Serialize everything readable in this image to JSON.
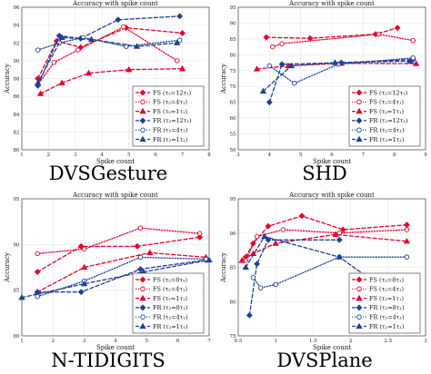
{
  "colors": {
    "red": "#e4002b",
    "blue": "#1f3f9a",
    "grid": "#e6e6e6",
    "axis": "#444444"
  },
  "legend_labels": [
    "FS (τ₂=12τ₁)",
    "FS (τ₂=4τ₁)",
    "FS (τ₂=1τ₁)",
    "FR (τ₂=12τ₁)",
    "FR (τ₂=4τ₁)",
    "FR (τ₂=1τ₁)"
  ],
  "legend_labels_8": [
    "FS (τ₂=8τ₁)",
    "FS (τ₂=4τ₁)",
    "FS (τ₂=1τ₁)",
    "FR (τ₂=8τ₁)",
    "FR (τ₂=4τ₁)",
    "FR (τ₂=1τ₁)"
  ],
  "chart_data": [
    {
      "type": "line",
      "title": "Accuracy with spike count",
      "caption": "DVSGesture",
      "xlabel": "Spike count",
      "ylabel": "Accuracy",
      "xlim": [
        1,
        8
      ],
      "ylim": [
        80,
        96
      ],
      "xticks": [
        "1",
        "2",
        "3",
        "4",
        "5",
        "6",
        "7",
        "8"
      ],
      "yticks": [
        "80",
        "82",
        "84",
        "86",
        "88",
        "90",
        "92",
        "94",
        "96"
      ],
      "grid": true,
      "legend_position": "lower-right",
      "series": [
        {
          "name": "FS (τ₂=12τ₁)",
          "group": "FS",
          "style": "dashed",
          "marker": "diamond",
          "x": [
            1.6,
            2.3,
            3.2,
            4.9,
            7.0
          ],
          "y": [
            88.0,
            92.2,
            91.5,
            93.7,
            93.1
          ]
        },
        {
          "name": "FS (τ₂=4τ₁)",
          "group": "FS",
          "style": "dotted",
          "marker": "circle",
          "x": [
            1.6,
            2.2,
            3.1,
            4.8,
            6.8
          ],
          "y": [
            87.3,
            89.8,
            91.2,
            93.8,
            90.0
          ]
        },
        {
          "name": "FS (τ₂=1τ₁)",
          "group": "FS",
          "style": "dashed",
          "marker": "triangle",
          "x": [
            1.7,
            2.5,
            3.5,
            5.0,
            7.0
          ],
          "y": [
            86.3,
            87.5,
            88.6,
            89.0,
            89.1
          ]
        },
        {
          "name": "FR (τ₂=12τ₁)",
          "group": "FR",
          "style": "dashed",
          "marker": "diamond",
          "x": [
            1.6,
            2.4,
            3.2,
            4.6,
            6.9
          ],
          "y": [
            87.2,
            92.8,
            92.5,
            94.6,
            95.0
          ]
        },
        {
          "name": "FR (τ₂=4τ₁)",
          "group": "FR",
          "style": "dotted",
          "marker": "circle",
          "x": [
            1.6,
            2.4,
            3.3,
            4.9,
            6.9
          ],
          "y": [
            91.2,
            92.0,
            92.6,
            91.6,
            92.3
          ]
        },
        {
          "name": "FR (τ₂=1τ₁)",
          "group": "FR",
          "style": "dashed",
          "marker": "triangle",
          "x": [
            1.6,
            2.5,
            3.6,
            5.3,
            6.8
          ],
          "y": [
            87.5,
            92.6,
            92.4,
            91.6,
            92.0
          ]
        }
      ]
    },
    {
      "type": "line",
      "title": "Accuracy with spike count",
      "caption": "SHD",
      "xlabel": "Spike count",
      "ylabel": "Accuracy",
      "xlim": [
        3,
        9
      ],
      "ylim": [
        50,
        95
      ],
      "xticks": [
        "3",
        "4",
        "5",
        "6",
        "7",
        "8",
        "9"
      ],
      "yticks": [
        "50",
        "55",
        "60",
        "65",
        "70",
        "75",
        "80",
        "85",
        "90",
        "95"
      ],
      "grid": true,
      "legend_position": "lower-right",
      "series": [
        {
          "name": "FS (τ₂=12τ₁)",
          "group": "FS",
          "style": "dashed",
          "marker": "diamond",
          "x": [
            3.9,
            5.3,
            7.4,
            8.1
          ],
          "y": [
            85.5,
            85.2,
            86.5,
            88.5
          ]
        },
        {
          "name": "FS (τ₂=4τ₁)",
          "group": "FS",
          "style": "dotted",
          "marker": "circle",
          "x": [
            4.1,
            4.4,
            7.5,
            8.6
          ],
          "y": [
            82.5,
            83.5,
            86.5,
            84.5
          ]
        },
        {
          "name": "FS (τ₂=1τ₁)",
          "group": "FS",
          "style": "dashed",
          "marker": "triangle",
          "x": [
            3.6,
            4.6,
            6.3,
            8.7
          ],
          "y": [
            75.5,
            76.5,
            77.3,
            77.2
          ]
        },
        {
          "name": "FR (τ₂=12τ₁)",
          "group": "FR",
          "style": "dashed",
          "marker": "diamond",
          "x": [
            4.0,
            4.4,
            6.3,
            8.6
          ],
          "y": [
            65.0,
            77.0,
            77.5,
            78.5
          ]
        },
        {
          "name": "FR (τ₂=4τ₁)",
          "group": "FR",
          "style": "dotted",
          "marker": "circle",
          "x": [
            4.0,
            4.8,
            6.2,
            8.6
          ],
          "y": [
            76.5,
            71.0,
            77.0,
            79.0
          ]
        },
        {
          "name": "FR (τ₂=1τ₁)",
          "group": "FR",
          "style": "dashed",
          "marker": "triangle",
          "x": [
            3.8,
            4.7,
            6.1,
            8.5
          ],
          "y": [
            68.5,
            76.5,
            77.5,
            78.0
          ]
        }
      ]
    },
    {
      "type": "line",
      "title": "Accuracy with spike count",
      "caption": "N-TIDIGITS",
      "xlabel": "Spike count",
      "ylabel": "Accuracy",
      "xlim": [
        1,
        7
      ],
      "ylim": [
        80,
        95
      ],
      "xticks": [
        "1",
        "2",
        "3",
        "4",
        "5",
        "6",
        "7"
      ],
      "yticks": [
        "80",
        "85",
        "90",
        "95"
      ],
      "grid": true,
      "legend_position": "lower-right",
      "series": [
        {
          "name": "FS (τ₂=8τ₁)",
          "group": "FS",
          "style": "dashed",
          "marker": "diamond",
          "x": [
            1.5,
            2.9,
            4.7,
            6.7
          ],
          "y": [
            87.0,
            89.8,
            89.8,
            90.8
          ]
        },
        {
          "name": "FS (τ₂=4τ₁)",
          "group": "FS",
          "style": "dotted",
          "marker": "circle",
          "x": [
            1.5,
            3.0,
            4.8,
            6.7
          ],
          "y": [
            89.0,
            89.5,
            91.8,
            91.2
          ]
        },
        {
          "name": "FS (τ₂=1τ₁)",
          "group": "FS",
          "style": "dashed",
          "marker": "triangle",
          "x": [
            1.5,
            3.0,
            5.1,
            6.9
          ],
          "y": [
            84.8,
            87.5,
            89.1,
            88.6
          ]
        },
        {
          "name": "FR (τ₂=8τ₁)",
          "group": "FR",
          "style": "dashed",
          "marker": "diamond",
          "x": [
            1.5,
            2.9,
            4.8,
            6.9
          ],
          "y": [
            84.8,
            84.8,
            87.3,
            88.3
          ]
        },
        {
          "name": "FR (τ₂=4τ₁)",
          "group": "FR",
          "style": "dotted",
          "marker": "circle",
          "x": [
            1.5,
            3.0,
            4.8,
            6.9
          ],
          "y": [
            84.3,
            86.0,
            88.6,
            88.4
          ]
        },
        {
          "name": "FR (τ₂=1τ₁)",
          "group": "FR",
          "style": "dashed",
          "marker": "triangle",
          "x": [
            1.0,
            3.0,
            4.9,
            7.0
          ],
          "y": [
            84.2,
            85.7,
            87.0,
            88.3
          ]
        }
      ]
    },
    {
      "type": "line",
      "title": "Accuracy with spike count",
      "caption": "DVSPlane",
      "xlabel": "Spike count",
      "ylabel": "Accuracy",
      "xlim": [
        0.5,
        3
      ],
      "ylim": [
        75,
        95
      ],
      "xticks": [
        "0.5",
        "1",
        "1.5",
        "2",
        "2.5",
        "3"
      ],
      "yticks": [
        "75",
        "80",
        "85",
        "90",
        "95"
      ],
      "grid": true,
      "legend_position": "lower-right",
      "series": [
        {
          "name": "FS (τ₂=8τ₁)",
          "group": "FS",
          "style": "dashed",
          "marker": "diamond",
          "x": [
            0.6,
            0.7,
            0.9,
            1.35,
            1.9,
            2.75
          ],
          "y": [
            86.5,
            88.5,
            91.0,
            92.5,
            90.5,
            91.2
          ]
        },
        {
          "name": "FS (τ₂=4τ₁)",
          "group": "FS",
          "style": "dotted",
          "marker": "circle",
          "x": [
            0.6,
            0.75,
            1.1,
            1.85,
            2.75
          ],
          "y": [
            86.0,
            89.5,
            90.5,
            90.0,
            90.5
          ]
        },
        {
          "name": "FS (τ₂=1τ₁)",
          "group": "FS",
          "style": "dashed",
          "marker": "triangle",
          "x": [
            0.55,
            0.7,
            1.0,
            1.8,
            2.75
          ],
          "y": [
            86.0,
            87.0,
            88.5,
            89.8,
            88.8
          ]
        },
        {
          "name": "FR (τ₂=8τ₁)",
          "group": "FR",
          "style": "dashed",
          "marker": "diamond",
          "x": [
            0.65,
            0.75,
            0.9,
            1.85
          ],
          "y": [
            78.0,
            85.5,
            89.0,
            89.0
          ]
        },
        {
          "name": "FR (τ₂=4τ₁)",
          "group": "FR",
          "style": "dotted",
          "marker": "circle",
          "x": [
            0.7,
            0.8,
            1.0,
            1.85,
            2.75
          ],
          "y": [
            83.5,
            82.0,
            82.5,
            86.5,
            86.5
          ]
        },
        {
          "name": "FR (τ₂=1τ₁)",
          "group": "FR",
          "style": "dashed",
          "marker": "triangle",
          "x": [
            0.6,
            0.85,
            1.85,
            2.75
          ],
          "y": [
            85.0,
            89.5,
            86.5,
            79.5
          ]
        }
      ]
    }
  ]
}
